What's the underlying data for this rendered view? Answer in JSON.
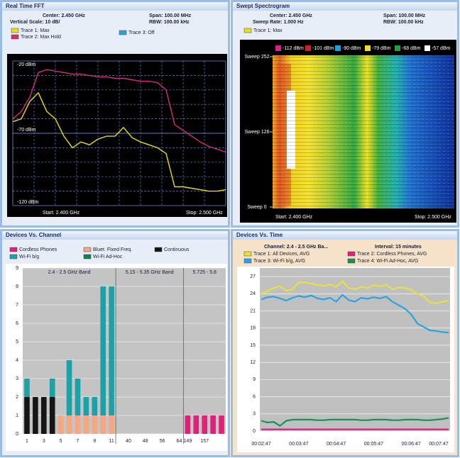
{
  "fft": {
    "title": "Real Time FFT",
    "center": "Center: 2.450 GHz",
    "span": "Span: 100.00 MHz",
    "vscale": "Vertical Scale: 10 dB/",
    "rbw": "RBW: 100.00 kHz",
    "start": "Start: 2.400 GHz",
    "stop": "Stop: 2.500 GHz",
    "xlim": [
      2400,
      2500
    ],
    "ylim": [
      -120,
      -20
    ],
    "yticks": [
      {
        "value": -20,
        "label": "-20 dBm"
      },
      {
        "value": -70,
        "label": "-70 dBm"
      },
      {
        "value": -120,
        "label": "-120 dBm"
      }
    ],
    "grid": {
      "x": [
        2410,
        2420,
        2430,
        2440,
        2450,
        2460,
        2470,
        2480,
        2490
      ],
      "y": [
        -30,
        -40,
        -50,
        -60,
        -70,
        -80,
        -90,
        -100,
        -110
      ]
    },
    "x": [
      2400,
      2404,
      2408,
      2412,
      2416,
      2420,
      2424,
      2428,
      2432,
      2436,
      2440,
      2444,
      2448,
      2452,
      2456,
      2460,
      2464,
      2468,
      2472,
      2476,
      2480,
      2484,
      2488,
      2492,
      2496,
      2500
    ],
    "series": [
      {
        "name": "Trace 1: Max",
        "color": "#e6dc20",
        "values": [
          -62,
          -60,
          -48,
          -42,
          -55,
          -60,
          -72,
          -80,
          -76,
          -78,
          -74,
          -72,
          -72,
          -66,
          -73,
          -76,
          -78,
          -80,
          -84,
          -107,
          -107,
          -108,
          -109,
          -110,
          -110,
          -109
        ]
      },
      {
        "name": "Trace 2: Max Hold",
        "color": "#d0307a",
        "values": [
          -60,
          -55,
          -45,
          -28,
          -26,
          -27,
          -28,
          -29,
          -29,
          -30,
          -31,
          -31,
          -32,
          -32,
          -33,
          -34,
          -34,
          -35,
          -40,
          -64,
          -68,
          -72,
          -76,
          -79,
          -81,
          -83
        ]
      },
      {
        "name": "Trace 3: Off",
        "color": "#30a0d8"
      }
    ]
  },
  "spectrogram": {
    "title": "Swept Spectrogram",
    "center": "Center: 2.450 GHz",
    "span": "Span: 100.00 MHz",
    "sweep_rate": "Sweep Rate: 1.000 Hz",
    "rbw": "RBW: 100.00 kHz",
    "trace": {
      "name": "Trace 1: Max",
      "color": "#e6dc20"
    },
    "scale": [
      {
        "label": "-112 dBm",
        "color": "#e0208a"
      },
      {
        "label": "-101 dBm",
        "color": "#d02020"
      },
      {
        "label": "-90 dBm",
        "color": "#18a0e0"
      },
      {
        "label": "-79 dBm",
        "color": "#f0e020"
      },
      {
        "label": "-68 dBm",
        "color": "#20a040"
      },
      {
        "label": "-57 dBm",
        "color": "#ffffff"
      }
    ],
    "ylim": [
      0,
      252
    ],
    "yticks": [
      {
        "value": 252,
        "label": "Sweep 252"
      },
      {
        "value": 126,
        "label": "Sweep 126"
      },
      {
        "value": 0,
        "label": "Sweep 0"
      }
    ],
    "start": "Start: 2.400 GHz",
    "stop": "Stop: 2.500 GHz"
  },
  "channel": {
    "title": "Devices Vs. Channel",
    "type": "bar",
    "bands": [
      {
        "label": "2.4 - 2.5 GHz Band",
        "categories": [
          "1",
          null,
          "3",
          null,
          "5",
          null,
          "7",
          null,
          "9",
          null,
          "11"
        ]
      },
      {
        "label": "5.15 - 5.35 GHz Band",
        "categories": [
          null,
          "40",
          null,
          "48",
          null,
          "56",
          null,
          "64"
        ]
      },
      {
        "label": "5.725 - 5.8",
        "categories": [
          "149",
          null,
          "157",
          null,
          null
        ]
      }
    ],
    "ylim": [
      0,
      9
    ],
    "yticks": [
      0,
      1,
      2,
      3,
      4,
      5,
      6,
      7,
      8,
      9
    ],
    "series": [
      {
        "name": "Continuous",
        "color": "#151515",
        "values": [
          2,
          2,
          2,
          2,
          0,
          0,
          0,
          0,
          0,
          0,
          0,
          0,
          0,
          0,
          0,
          0,
          0,
          0,
          0,
          0,
          0,
          0,
          0,
          0
        ]
      },
      {
        "name": "Bluet. Fixed Freq.",
        "color": "#f2a880",
        "values": [
          0,
          0,
          0,
          0,
          1,
          1,
          1,
          1,
          1,
          1,
          1,
          0,
          0,
          0,
          0,
          0,
          0,
          0,
          0,
          0,
          0,
          0,
          0,
          0
        ]
      },
      {
        "name": "Wi-Fi b/g",
        "color": "#1ea0a8",
        "values": [
          1,
          0,
          0,
          1,
          0,
          3,
          2,
          1,
          1,
          7,
          7,
          0,
          0,
          0,
          0,
          0,
          0,
          0,
          0,
          0,
          0,
          0,
          0,
          0
        ]
      },
      {
        "name": "Cordless Phones",
        "color": "#e0207a",
        "values": [
          0,
          0,
          0,
          0,
          0,
          0,
          0,
          0,
          0,
          0,
          0,
          0,
          0,
          0,
          0,
          0,
          0,
          0,
          0,
          1,
          1,
          1,
          1,
          1
        ]
      },
      {
        "name": "Wi-Fi Ad-Hoc",
        "color": "#108050",
        "values": [
          0,
          0,
          0,
          0,
          0,
          0,
          0,
          0,
          0,
          0,
          0,
          0,
          0,
          0,
          0,
          0,
          0,
          0,
          0,
          0,
          0,
          0,
          0,
          0
        ]
      }
    ]
  },
  "time": {
    "title": "Devices Vs. Time",
    "type": "line",
    "channel": "Channel: 2.4 - 2.5 GHz Ba...",
    "interval": "Interval: 15 minutes",
    "x": [
      "00:02:47",
      null,
      null,
      null,
      null,
      null,
      "00:03:47",
      null,
      null,
      null,
      null,
      null,
      "00:04:47",
      null,
      null,
      null,
      null,
      null,
      "00:05:47",
      null,
      null,
      null,
      null,
      null,
      "00:06:47",
      null,
      null,
      null,
      null,
      null,
      "00:07:47"
    ],
    "ylim": [
      0,
      28.5
    ],
    "yticks": [
      0,
      3,
      6,
      9,
      12,
      15,
      18,
      21,
      24,
      27
    ],
    "series": [
      {
        "name": "Trace 1: All Devices, AVG",
        "color": "#e8e040",
        "values": [
          24,
          24.5,
          25,
          25.3,
          24.5,
          24.8,
          26,
          26,
          25.8,
          25.5,
          25.4,
          25.6,
          25.2,
          26.2,
          25,
          24.8,
          25.2,
          25,
          25.5,
          25.3,
          25.6,
          24.8,
          25.1,
          25,
          24.7,
          24,
          23.6,
          22.5,
          22.3,
          22.6,
          22.8
        ]
      },
      {
        "name": "Trace 2: Cordless Phones, AVG",
        "color": "#e0207a",
        "values": [
          0.3,
          0.3,
          0.3,
          0.3,
          0.3,
          0.3,
          0.3,
          0.3,
          0.3,
          0.3,
          0.3,
          0.3,
          0.3,
          0.3,
          0.3,
          0.3,
          0.3,
          0.3,
          0.3,
          0.3,
          0.3,
          0.3,
          0.3,
          0.3,
          0.3,
          0.3,
          0.3,
          0.3,
          0.3,
          0.3,
          0.3
        ]
      },
      {
        "name": "Trace 3: Wi-Fi b/g, AVG",
        "color": "#2aa4e0",
        "values": [
          23,
          23.4,
          23.5,
          23.2,
          22.8,
          23.3,
          23.6,
          23.4,
          23.7,
          23.2,
          23,
          23.3,
          22.6,
          23.8,
          22.9,
          22.6,
          23.3,
          23.1,
          23.4,
          23.2,
          23.5,
          22.6,
          22,
          21.4,
          20.4,
          18.8,
          18.2,
          17.6,
          17.5,
          17.3,
          17.2
        ]
      },
      {
        "name": "Trace 4: Wi-Fi Ad-Hoc, AVG",
        "color": "#18905a",
        "values": [
          1.8,
          1.5,
          1.6,
          0.9,
          1.8,
          2,
          2,
          2,
          2,
          1.9,
          1.9,
          2,
          2,
          2,
          2,
          2,
          1.9,
          1.9,
          2,
          2,
          2,
          1.9,
          1.9,
          2,
          2,
          2,
          1.9,
          1.9,
          2,
          2.1,
          2.3
        ]
      }
    ]
  }
}
